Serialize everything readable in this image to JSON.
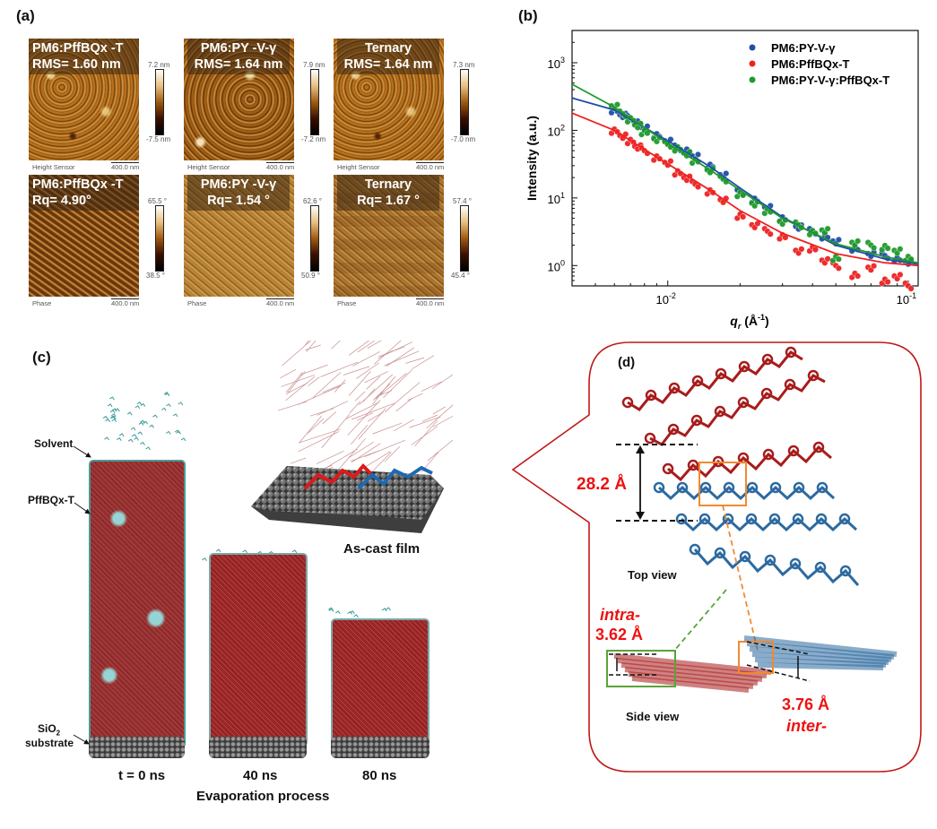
{
  "panel_labels": {
    "a": "(a)",
    "b": "(b)",
    "c": "(c)",
    "d": "(d)"
  },
  "afm": {
    "height_row": [
      {
        "title": "PM6:PffBQx  -T",
        "value": "RMS= 1.60 nm",
        "cbar_max": "7.2 nm",
        "cbar_min": "-7.5 nm",
        "caption": "Height Sensor",
        "scale": "400.0 nm"
      },
      {
        "title": "PM6:PY -V-γ",
        "value": "RMS= 1.64 nm",
        "cbar_max": "7.9 nm",
        "cbar_min": "-7.2 nm",
        "caption": "Height Sensor",
        "scale": "400.0 nm"
      },
      {
        "title": "Ternary",
        "value": "RMS= 1.64 nm",
        "cbar_max": "7.3 nm",
        "cbar_min": "-7.0 nm",
        "caption": "Height Sensor",
        "scale": "400.0 nm"
      }
    ],
    "phase_row": [
      {
        "title": "PM6:PffBQx  -T",
        "value": "Rq= 4.90°",
        "cbar_max": "65.5 °",
        "cbar_min": "38.5 °",
        "caption": "Phase",
        "scale": "400.0 nm"
      },
      {
        "title": "PM6:PY -V-γ",
        "value": "Rq= 1.54  °",
        "cbar_max": "62.6 °",
        "cbar_min": "50.9 °",
        "caption": "Phase",
        "scale": "400.0 nm"
      },
      {
        "title": "Ternary",
        "value": "Rq= 1.67  °",
        "cbar_max": "57.4 °",
        "cbar_min": "45.4 °",
        "caption": "Phase",
        "scale": "400.0 nm"
      }
    ]
  },
  "chart_data": {
    "type": "scatter",
    "xscale": "log",
    "yscale": "log",
    "xlabel": "q",
    "xlabel_sub": "r",
    "xlabel_unit": " (Å",
    "xlabel_unit_exp": "-1",
    "xlabel_close": ")",
    "ylabel": "Intensity (a.u.)",
    "xlim": [
      0.004,
      0.11
    ],
    "ylim": [
      0.5,
      3000
    ],
    "x_ticks": [
      {
        "value": 0.01,
        "base": "10",
        "exp": "-2"
      },
      {
        "value": 0.1,
        "base": "10",
        "exp": "-1"
      }
    ],
    "y_ticks": [
      {
        "value": 1,
        "base": "10",
        "exp": "0"
      },
      {
        "value": 10,
        "base": "10",
        "exp": "1"
      },
      {
        "value": 100,
        "base": "10",
        "exp": "2"
      },
      {
        "value": 1000,
        "base": "10",
        "exp": "3"
      }
    ],
    "legend_position": "top-right",
    "series": [
      {
        "name": "PM6:PY-V-γ",
        "color": "#1f4fa8",
        "x": [
          0.006,
          0.0065,
          0.007,
          0.0075,
          0.008,
          0.009,
          0.01,
          0.011,
          0.012,
          0.013,
          0.015,
          0.017,
          0.02,
          0.023,
          0.026,
          0.03,
          0.035,
          0.04,
          0.045,
          0.05,
          0.06,
          0.07,
          0.08,
          0.09,
          0.1
        ],
        "y": [
          200,
          170,
          150,
          125,
          105,
          85,
          70,
          55,
          48,
          40,
          30,
          22,
          12,
          9,
          7,
          5,
          3.8,
          3.2,
          2.6,
          2.2,
          1.8,
          1.5,
          1.4,
          1.2,
          1.1
        ],
        "fit_x": [
          0.004,
          0.006,
          0.008,
          0.01,
          0.015,
          0.02,
          0.03,
          0.05,
          0.08,
          0.11
        ],
        "fit_y": [
          300,
          200,
          110,
          70,
          29,
          14,
          5.2,
          2.0,
          1.25,
          1.05
        ]
      },
      {
        "name": "PM6:PffBQx-T",
        "color": "#ee2222",
        "x": [
          0.006,
          0.0065,
          0.007,
          0.0075,
          0.008,
          0.009,
          0.01,
          0.011,
          0.012,
          0.013,
          0.015,
          0.017,
          0.02,
          0.023,
          0.026,
          0.03,
          0.035,
          0.04,
          0.045,
          0.05,
          0.06,
          0.07,
          0.08,
          0.09,
          0.1
        ],
        "y": [
          95,
          80,
          70,
          58,
          50,
          38,
          32,
          24,
          20,
          16,
          12,
          9,
          5.5,
          4,
          3.2,
          2.6,
          1.6,
          1.8,
          1.2,
          1.0,
          0.7,
          0.9,
          0.6,
          0.7,
          0.5
        ],
        "fit_x": [
          0.004,
          0.006,
          0.008,
          0.01,
          0.015,
          0.02,
          0.03,
          0.05,
          0.08,
          0.11
        ],
        "fit_y": [
          180,
          100,
          52,
          32,
          13,
          6.5,
          3.0,
          1.5,
          1.1,
          1.0
        ]
      },
      {
        "name": "PM6:PY-V-γ:PffBQx-T",
        "color": "#1f9a2a",
        "x": [
          0.006,
          0.0065,
          0.007,
          0.0075,
          0.008,
          0.009,
          0.01,
          0.011,
          0.012,
          0.013,
          0.015,
          0.017,
          0.02,
          0.023,
          0.026,
          0.03,
          0.035,
          0.04,
          0.045,
          0.05,
          0.06,
          0.07,
          0.08,
          0.09,
          0.1
        ],
        "y": [
          230,
          175,
          140,
          115,
          95,
          75,
          62,
          52,
          44,
          36,
          26,
          19,
          11,
          8,
          6.5,
          4.5,
          4,
          3,
          3.2,
          1.3,
          2.2,
          2.0,
          1.8,
          1.6,
          1.3
        ],
        "fit_x": [
          0.004,
          0.006,
          0.008,
          0.01,
          0.015,
          0.02,
          0.03,
          0.05,
          0.08,
          0.11
        ],
        "fit_y": [
          480,
          220,
          110,
          64,
          26,
          13,
          5.0,
          2.1,
          1.35,
          1.1
        ]
      }
    ]
  },
  "md": {
    "solvent_label": "Solvent",
    "acceptor_label": "PffBQx-T",
    "substrate_label_1": "SiO",
    "substrate_label_sub": "2",
    "substrate_label_2": "substrate",
    "times": [
      "t = 0 ns",
      "40 ns",
      "80 ns"
    ],
    "process_label": "Evaporation process",
    "ascast_label": "As-cast film"
  },
  "packing": {
    "spacing_label": "28.2 Å",
    "top_view": "Top view",
    "side_view": "Side view",
    "intra_label": "intra-",
    "intra_value": "3.62 Å",
    "inter_value": "3.76 Å",
    "inter_label": "inter-",
    "colors": {
      "donor_red": "#a81c1c",
      "acceptor_blue": "#2c6aa0",
      "frame": "#c01818",
      "orange": "#f08a30",
      "green": "#5aa33a"
    }
  }
}
